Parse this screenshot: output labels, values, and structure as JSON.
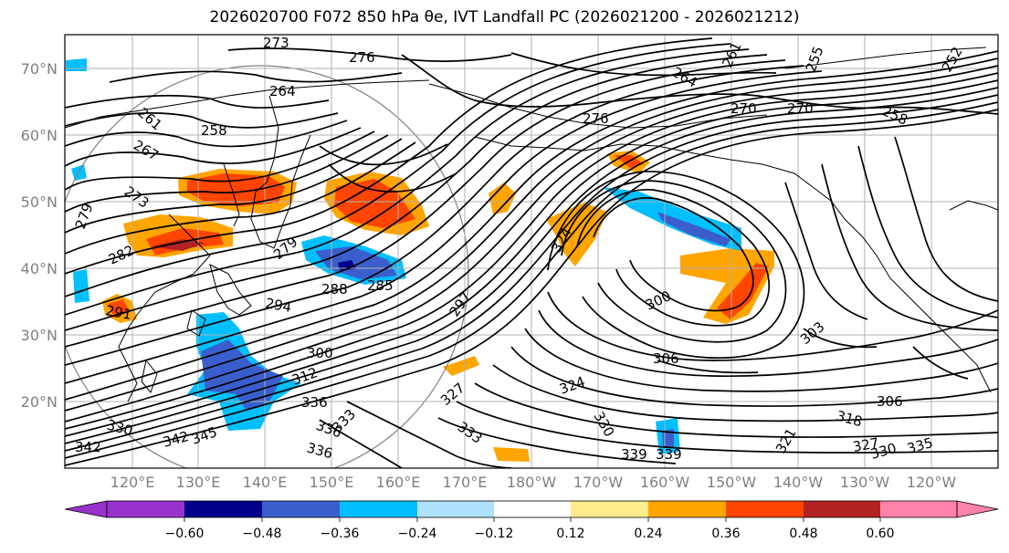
{
  "title": "2026020700 F072 850 hPa θe, IVT Landfall PC (2026021200 - 2026021212)",
  "map": {
    "lat_labels": [
      "70°N",
      "60°N",
      "50°N",
      "40°N",
      "30°N",
      "20°N"
    ],
    "lon_labels": [
      "120°E",
      "130°E",
      "140°E",
      "150°E",
      "160°E",
      "170°E",
      "180°W",
      "170°W",
      "160°W",
      "150°W",
      "140°W",
      "130°W",
      "120°W"
    ],
    "theta_e_contour_labels": [
      "273",
      "276",
      "264",
      "261",
      "264",
      "255",
      "252",
      "261",
      "258",
      "267",
      "270",
      "270",
      "276",
      "258",
      "279",
      "273",
      "282",
      "279",
      "291",
      "294",
      "288",
      "285",
      "297",
      "300",
      "300",
      "303",
      "306",
      "312",
      "324",
      "327",
      "324",
      "318",
      "306",
      "336",
      "330",
      "336",
      "333",
      "333",
      "336",
      "339",
      "330",
      "345",
      "342",
      "342",
      "339",
      "327",
      "330",
      "335",
      "321"
    ]
  },
  "colorbar": {
    "ticks": [
      "−0.60",
      "−0.48",
      "−0.36",
      "−0.24",
      "−0.12",
      "0.12",
      "0.24",
      "0.36",
      "0.48",
      "0.60"
    ],
    "colors": [
      "#9932cc",
      "#00008b",
      "#3a5fcd",
      "#00bfff",
      "#b0e2ff",
      "#ffffff",
      "#ffec8b",
      "#ffa500",
      "#ff4500",
      "#b22222",
      "#ff82ab"
    ]
  }
}
